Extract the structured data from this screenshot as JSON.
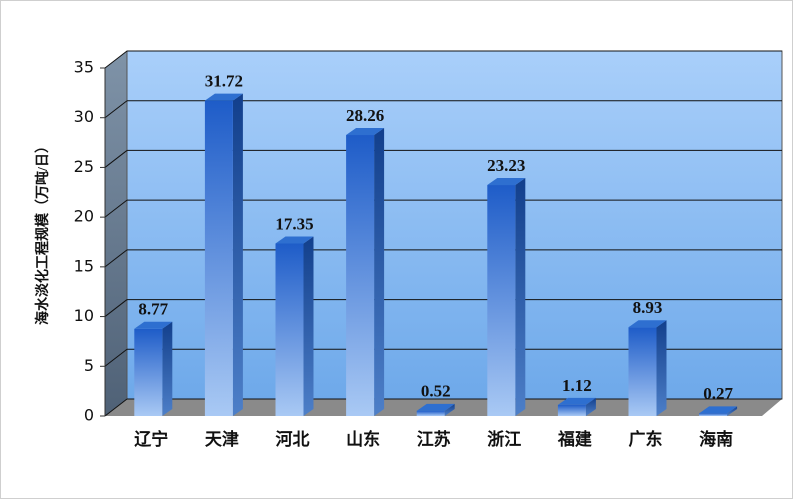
{
  "chart_data": {
    "type": "bar",
    "y_label": "海水淡化工程规模（万吨/日）",
    "categories": [
      "辽宁",
      "天津",
      "河北",
      "山东",
      "江苏",
      "浙江",
      "福建",
      "广东",
      "海南"
    ],
    "values": [
      8.77,
      31.72,
      17.35,
      28.26,
      0.52,
      23.23,
      1.12,
      8.93,
      0.27
    ],
    "color": "#2e6fd0",
    "ylim": [
      0,
      35
    ],
    "yticks": [
      0,
      5,
      10,
      15,
      20,
      25,
      30,
      35
    ],
    "grid": true
  }
}
